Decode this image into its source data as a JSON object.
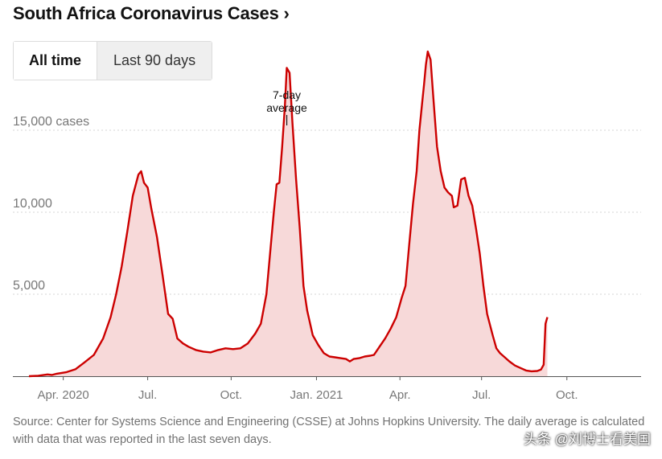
{
  "header": {
    "title": "South Africa Coronavirus Cases",
    "chevron": "›"
  },
  "tabs": [
    {
      "label": "All time",
      "selected": true
    },
    {
      "label": "Last 90 days",
      "selected": false
    }
  ],
  "chart_data": {
    "type": "area",
    "title": "South Africa Coronavirus Cases",
    "series_name": "7-day average",
    "annotation": {
      "line1": "7-day",
      "line2": "average",
      "at_day": 278
    },
    "unit_suffix": " cases",
    "ylim": [
      0,
      20000
    ],
    "y_ticks": [
      {
        "value": 5000,
        "label": "5,000"
      },
      {
        "value": 10000,
        "label": "10,000"
      },
      {
        "value": 15000,
        "label": "15,000 cases"
      }
    ],
    "x_axis_start": "2020-03-01",
    "xlim_days": [
      0,
      660
    ],
    "x_ticks": [
      {
        "day": 37,
        "label": "Apr. 2020"
      },
      {
        "day": 128,
        "label": "Jul."
      },
      {
        "day": 218,
        "label": "Oct."
      },
      {
        "day": 310,
        "label": "Jan. 2021"
      },
      {
        "day": 400,
        "label": "Apr."
      },
      {
        "day": 488,
        "label": "Jul."
      },
      {
        "day": 580,
        "label": "Oct."
      }
    ],
    "points": [
      [
        0,
        0
      ],
      [
        10,
        30
      ],
      [
        20,
        110
      ],
      [
        25,
        80
      ],
      [
        30,
        150
      ],
      [
        40,
        240
      ],
      [
        50,
        420
      ],
      [
        60,
        850
      ],
      [
        70,
        1300
      ],
      [
        80,
        2300
      ],
      [
        88,
        3600
      ],
      [
        94,
        5000
      ],
      [
        100,
        6700
      ],
      [
        106,
        8800
      ],
      [
        112,
        11000
      ],
      [
        118,
        12300
      ],
      [
        121,
        12500
      ],
      [
        124,
        11800
      ],
      [
        128,
        11500
      ],
      [
        132,
        10200
      ],
      [
        138,
        8500
      ],
      [
        144,
        6200
      ],
      [
        150,
        3800
      ],
      [
        155,
        3500
      ],
      [
        160,
        2300
      ],
      [
        166,
        2000
      ],
      [
        172,
        1800
      ],
      [
        180,
        1600
      ],
      [
        188,
        1500
      ],
      [
        196,
        1450
      ],
      [
        204,
        1600
      ],
      [
        212,
        1700
      ],
      [
        220,
        1650
      ],
      [
        228,
        1700
      ],
      [
        236,
        2000
      ],
      [
        244,
        2600
      ],
      [
        250,
        3200
      ],
      [
        256,
        5000
      ],
      [
        260,
        7500
      ],
      [
        264,
        10000
      ],
      [
        267,
        11700
      ],
      [
        270,
        11800
      ],
      [
        273,
        14000
      ],
      [
        276,
        16500
      ],
      [
        278,
        18800
      ],
      [
        281,
        18500
      ],
      [
        284,
        15500
      ],
      [
        288,
        12000
      ],
      [
        292,
        9000
      ],
      [
        296,
        5500
      ],
      [
        300,
        4000
      ],
      [
        306,
        2500
      ],
      [
        312,
        1900
      ],
      [
        318,
        1400
      ],
      [
        324,
        1200
      ],
      [
        330,
        1150
      ],
      [
        336,
        1100
      ],
      [
        342,
        1050
      ],
      [
        346,
        900
      ],
      [
        350,
        1050
      ],
      [
        356,
        1100
      ],
      [
        362,
        1200
      ],
      [
        368,
        1250
      ],
      [
        372,
        1300
      ],
      [
        378,
        1800
      ],
      [
        384,
        2300
      ],
      [
        390,
        2900
      ],
      [
        396,
        3600
      ],
      [
        402,
        4800
      ],
      [
        406,
        5500
      ],
      [
        410,
        8000
      ],
      [
        414,
        10500
      ],
      [
        418,
        12500
      ],
      [
        421,
        15000
      ],
      [
        424,
        16700
      ],
      [
        426,
        17800
      ],
      [
        428,
        19000
      ],
      [
        430,
        19800
      ],
      [
        433,
        19300
      ],
      [
        436,
        17000
      ],
      [
        440,
        14000
      ],
      [
        444,
        12500
      ],
      [
        448,
        11500
      ],
      [
        452,
        11200
      ],
      [
        456,
        11000
      ],
      [
        458,
        10300
      ],
      [
        462,
        10400
      ],
      [
        466,
        12000
      ],
      [
        470,
        12100
      ],
      [
        474,
        11000
      ],
      [
        478,
        10400
      ],
      [
        482,
        9000
      ],
      [
        486,
        7500
      ],
      [
        490,
        5500
      ],
      [
        494,
        3800
      ],
      [
        500,
        2500
      ],
      [
        504,
        1700
      ],
      [
        508,
        1400
      ],
      [
        512,
        1200
      ],
      [
        518,
        900
      ],
      [
        524,
        650
      ],
      [
        530,
        500
      ],
      [
        536,
        350
      ],
      [
        542,
        300
      ],
      [
        548,
        320
      ],
      [
        552,
        400
      ],
      [
        555,
        700
      ],
      [
        557,
        3200
      ],
      [
        559,
        3600
      ]
    ]
  },
  "source": {
    "text": "Source: Center for Systems Science and Engineering (CSSE) at Johns Hopkins University. The daily average is calculated with data that was reported in the last seven days."
  },
  "watermark": {
    "text": "头条 @刘博士看美国"
  },
  "colors": {
    "line": "#cc0000",
    "fill": "#f7d9d9",
    "grid": "#d4d4d4",
    "baseline": "#555555",
    "axis_text": "#777777"
  }
}
